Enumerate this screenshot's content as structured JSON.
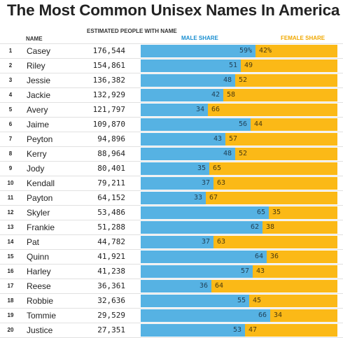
{
  "title": "The Most Common Unisex Names In America",
  "headers": {
    "name": "NAME",
    "estimated": "ESTIMATED PEOPLE WITH NAME",
    "male": "MALE SHARE",
    "female": "FEMALE SHARE"
  },
  "colors": {
    "male": "#56b2e3",
    "female": "#fbb917",
    "male_header": "#1a8fd0",
    "female_header": "#f0a800"
  },
  "chart_data": {
    "type": "bar",
    "title": "The Most Common Unisex Names In America",
    "stacked": true,
    "orientation": "horizontal",
    "categories": [
      "Casey",
      "Riley",
      "Jessie",
      "Jackie",
      "Avery",
      "Jaime",
      "Peyton",
      "Kerry",
      "Jody",
      "Kendall",
      "Payton",
      "Skyler",
      "Frankie",
      "Pat",
      "Quinn",
      "Harley",
      "Reese",
      "Robbie",
      "Tommie",
      "Justice"
    ],
    "ranks": [
      "1",
      "2",
      "3",
      "4",
      "5",
      "6",
      "7",
      "8",
      "9",
      "10",
      "11",
      "12",
      "13",
      "14",
      "15",
      "16",
      "17",
      "18",
      "19",
      "20"
    ],
    "estimated_people": [
      "176,544",
      "154,861",
      "136,382",
      "132,929",
      "121,797",
      "109,870",
      "94,896",
      "88,964",
      "80,401",
      "79,211",
      "64,152",
      "53,486",
      "51,288",
      "44,782",
      "41,921",
      "41,238",
      "36,361",
      "32,636",
      "29,529",
      "27,351"
    ],
    "series": [
      {
        "name": "MALE SHARE",
        "values": [
          59,
          51,
          48,
          42,
          34,
          56,
          43,
          48,
          35,
          37,
          33,
          65,
          62,
          37,
          64,
          57,
          36,
          55,
          66,
          53
        ]
      },
      {
        "name": "FEMALE SHARE",
        "values": [
          42,
          49,
          52,
          58,
          66,
          44,
          57,
          52,
          65,
          63,
          67,
          35,
          38,
          63,
          36,
          43,
          64,
          45,
          34,
          47
        ]
      }
    ],
    "value_labels": {
      "male": [
        "59%",
        "51",
        "48",
        "42",
        "34",
        "56",
        "43",
        "48",
        "35",
        "37",
        "33",
        "65",
        "62",
        "37",
        "64",
        "57",
        "36",
        "55",
        "66",
        "53"
      ],
      "female": [
        "42%",
        "49",
        "52",
        "58",
        "66",
        "44",
        "57",
        "52",
        "65",
        "63",
        "67",
        "35",
        "38",
        "63",
        "36",
        "43",
        "64",
        "45",
        "34",
        "47"
      ]
    },
    "xlim": [
      0,
      100
    ]
  }
}
